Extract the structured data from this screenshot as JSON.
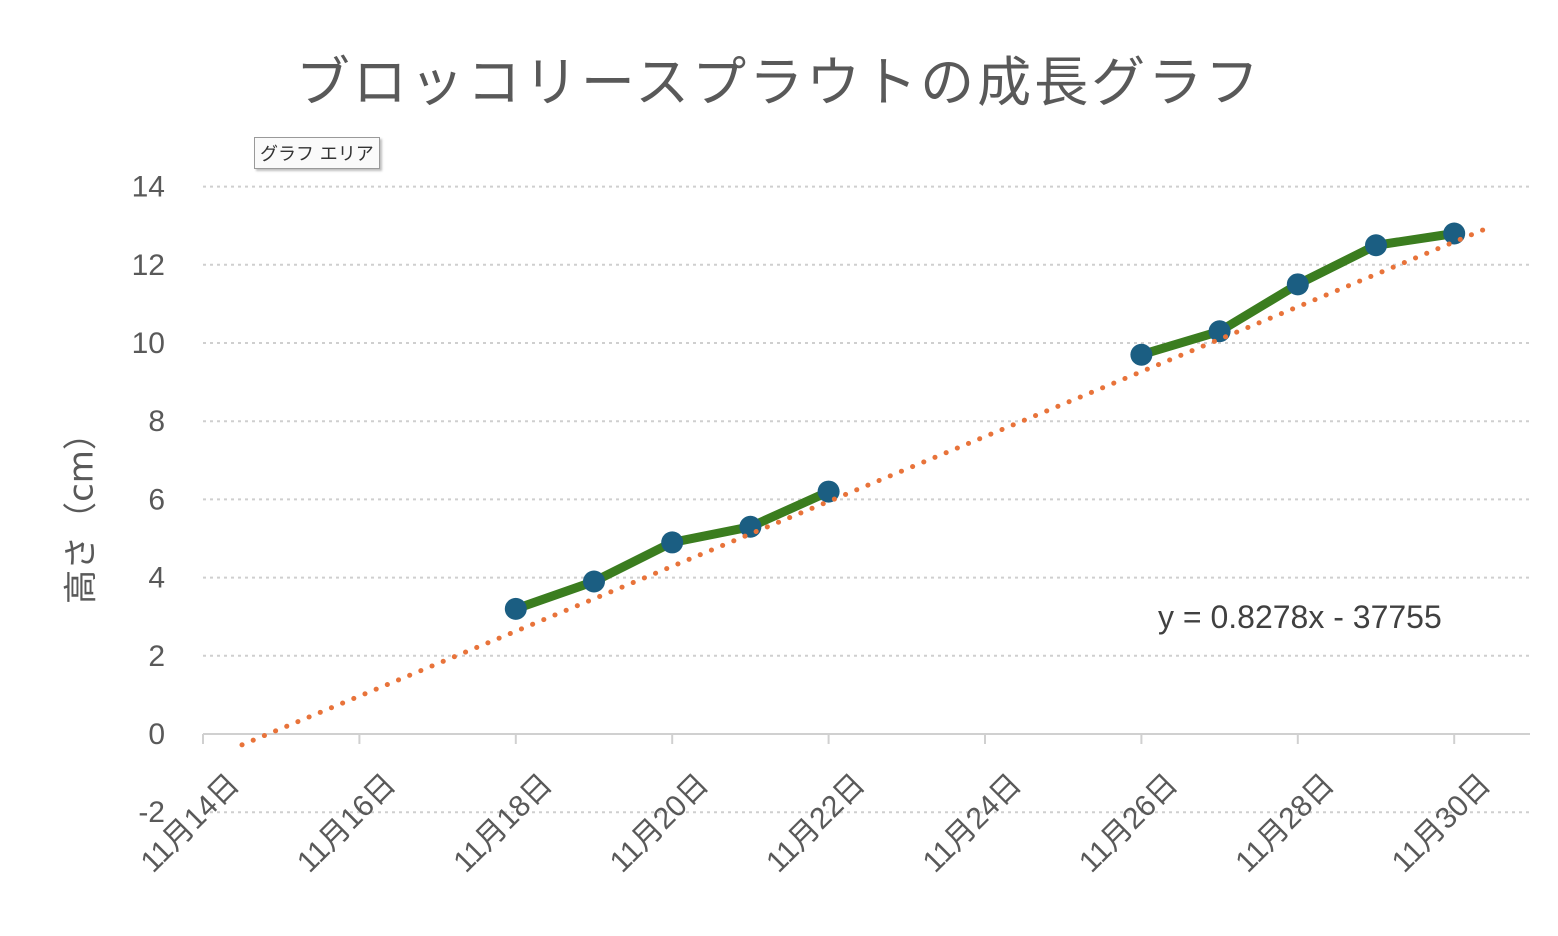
{
  "chart_data": {
    "type": "line",
    "title": "ブロッコリースプラウトの成長グラフ",
    "ylabel": "高さ（cm）",
    "xlabel": "",
    "ylim": [
      -2,
      14
    ],
    "yticks": [
      -2,
      0,
      2,
      4,
      6,
      8,
      10,
      12,
      14
    ],
    "x_tick_labels": [
      "11月14日",
      "11月16日",
      "11月18日",
      "11月20日",
      "11月22日",
      "11月24日",
      "11月26日",
      "11月28日",
      "11月30日"
    ],
    "x_ticks": [
      "11-14",
      "11-16",
      "11-18",
      "11-20",
      "11-22",
      "11-24",
      "11-26",
      "11-28",
      "11-30"
    ],
    "x_range": [
      "11-14",
      "11-31"
    ],
    "grid": true,
    "series": [
      {
        "x": [
          "11-18",
          "11-19",
          "11-20",
          "11-21",
          "11-22",
          "11-26",
          "11-27",
          "11-28",
          "11-29",
          "11-30"
        ],
        "values": [
          3.2,
          3.9,
          4.9,
          5.3,
          6.2,
          9.7,
          10.3,
          11.5,
          12.5,
          12.8
        ],
        "line_color": "#3b7d1f",
        "marker_color": "#1b5e82"
      }
    ],
    "trendline": {
      "type": "linear",
      "color": "#e8733a",
      "style": "dotted",
      "x_range": [
        "11-14",
        "11-30"
      ],
      "y_range": [
        -0.2,
        13.0
      ],
      "equation": "y = 0.8278x - 37755"
    }
  },
  "ui": {
    "tooltip": "グラフ エリア"
  }
}
